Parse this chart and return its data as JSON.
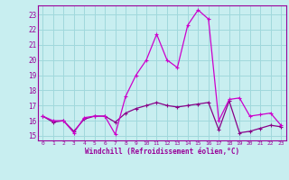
{
  "x": [
    0,
    1,
    2,
    3,
    4,
    5,
    6,
    7,
    8,
    9,
    10,
    11,
    12,
    13,
    14,
    15,
    16,
    17,
    18,
    19,
    20,
    21,
    22,
    23
  ],
  "line1_volatile": [
    16.3,
    16.0,
    16.0,
    15.2,
    16.2,
    16.3,
    16.3,
    15.1,
    17.6,
    19.0,
    20.0,
    21.7,
    20.0,
    19.5,
    22.3,
    23.3,
    22.7,
    16.0,
    17.4,
    17.5,
    16.3,
    16.4,
    16.5,
    15.7
  ],
  "line2_smooth": [
    16.3,
    15.9,
    16.0,
    15.3,
    16.1,
    16.3,
    16.3,
    15.9,
    16.5,
    16.8,
    17.0,
    17.2,
    17.0,
    16.9,
    17.0,
    17.1,
    17.2,
    15.4,
    17.3,
    15.2,
    15.3,
    15.5,
    15.7,
    15.6
  ],
  "line_color1": "#cc00cc",
  "line_color2": "#880088",
  "bg_color": "#c8eef0",
  "grid_color": "#a0d8dc",
  "text_color": "#990099",
  "xlabel": "Windchill (Refroidissement éolien,°C)",
  "ylim": [
    14.7,
    23.6
  ],
  "xlim": [
    -0.5,
    23.5
  ],
  "yticks": [
    15,
    16,
    17,
    18,
    19,
    20,
    21,
    22,
    23
  ],
  "xticks": [
    0,
    1,
    2,
    3,
    4,
    5,
    6,
    7,
    8,
    9,
    10,
    11,
    12,
    13,
    14,
    15,
    16,
    17,
    18,
    19,
    20,
    21,
    22,
    23
  ],
  "xtick_labels": [
    "0",
    "1",
    "2",
    "3",
    "4",
    "5",
    "6",
    "7",
    "8",
    "9",
    "10",
    "11",
    "12",
    "13",
    "14",
    "15",
    "16",
    "17",
    "18",
    "19",
    "20",
    "21",
    "22",
    "23"
  ]
}
